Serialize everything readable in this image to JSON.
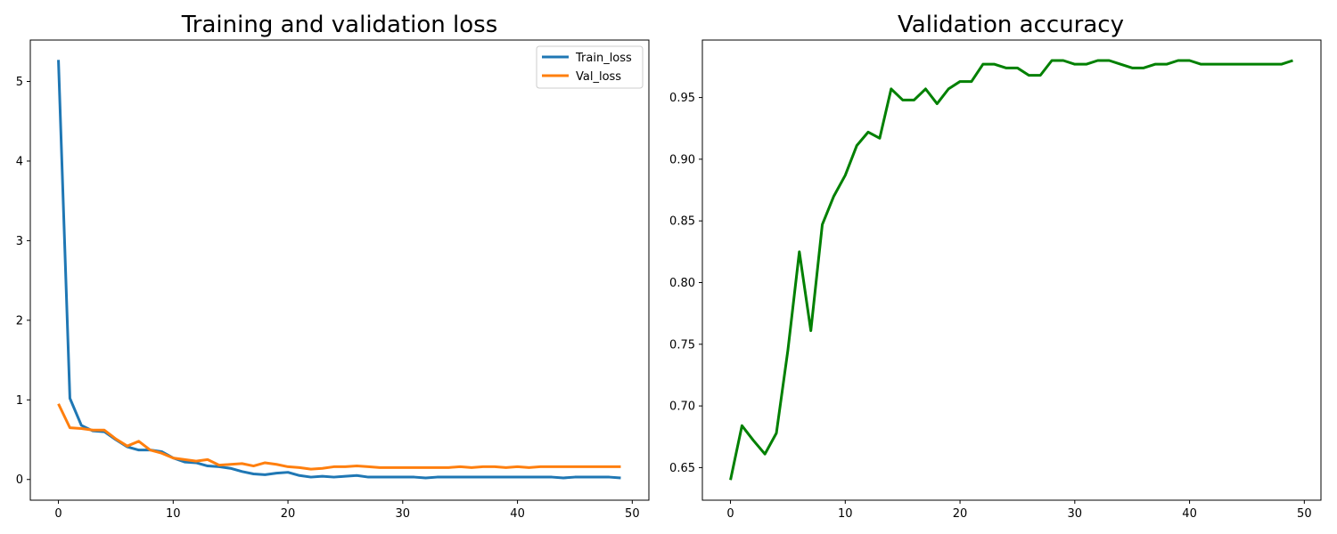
{
  "chart_data": [
    {
      "type": "line",
      "title": "Training and validation loss",
      "xlabel": "",
      "ylabel": "",
      "xlim": [
        -2.45,
        51.45
      ],
      "ylim": [
        -0.26,
        5.52
      ],
      "xticks": [
        0,
        10,
        20,
        30,
        40,
        50
      ],
      "yticks": [
        0,
        1,
        2,
        3,
        4,
        5
      ],
      "grid": false,
      "legend_position": "upper right",
      "x": [
        0,
        1,
        2,
        3,
        4,
        5,
        6,
        7,
        8,
        9,
        10,
        11,
        12,
        13,
        14,
        15,
        16,
        17,
        18,
        19,
        20,
        21,
        22,
        23,
        24,
        25,
        26,
        27,
        28,
        29,
        30,
        31,
        32,
        33,
        34,
        35,
        36,
        37,
        38,
        39,
        40,
        41,
        42,
        43,
        44,
        45,
        46,
        47,
        48,
        49
      ],
      "series": [
        {
          "name": "Train_loss",
          "color": "#1f77b4",
          "values": [
            5.27,
            1.02,
            0.68,
            0.61,
            0.6,
            0.5,
            0.41,
            0.37,
            0.37,
            0.35,
            0.27,
            0.22,
            0.21,
            0.17,
            0.16,
            0.14,
            0.1,
            0.07,
            0.06,
            0.08,
            0.09,
            0.05,
            0.03,
            0.04,
            0.03,
            0.04,
            0.05,
            0.03,
            0.03,
            0.03,
            0.03,
            0.03,
            0.02,
            0.03,
            0.03,
            0.03,
            0.03,
            0.03,
            0.03,
            0.03,
            0.03,
            0.03,
            0.03,
            0.03,
            0.02,
            0.03,
            0.03,
            0.03,
            0.03,
            0.02
          ]
        },
        {
          "name": "Val_loss",
          "color": "#ff7f0e",
          "values": [
            0.95,
            0.65,
            0.64,
            0.62,
            0.62,
            0.51,
            0.42,
            0.48,
            0.37,
            0.33,
            0.27,
            0.25,
            0.23,
            0.25,
            0.18,
            0.19,
            0.2,
            0.17,
            0.21,
            0.19,
            0.16,
            0.15,
            0.13,
            0.14,
            0.16,
            0.16,
            0.17,
            0.16,
            0.15,
            0.15,
            0.15,
            0.15,
            0.15,
            0.15,
            0.15,
            0.16,
            0.15,
            0.16,
            0.16,
            0.15,
            0.16,
            0.15,
            0.16,
            0.16,
            0.16,
            0.16,
            0.16,
            0.16,
            0.16,
            0.16
          ]
        }
      ]
    },
    {
      "type": "line",
      "title": "Validation accuracy",
      "xlabel": "",
      "ylabel": "",
      "xlim": [
        -2.45,
        51.45
      ],
      "ylim": [
        0.6236,
        0.9966
      ],
      "xticks": [
        0,
        10,
        20,
        30,
        40,
        50
      ],
      "yticks": [
        0.65,
        0.7,
        0.75,
        0.8,
        0.85,
        0.9,
        0.95
      ],
      "ytick_labels": [
        "0.65",
        "0.70",
        "0.75",
        "0.80",
        "0.85",
        "0.90",
        "0.95"
      ],
      "grid": false,
      "x": [
        0,
        1,
        2,
        3,
        4,
        5,
        6,
        7,
        8,
        9,
        10,
        11,
        12,
        13,
        14,
        15,
        16,
        17,
        18,
        19,
        20,
        21,
        22,
        23,
        24,
        25,
        26,
        27,
        28,
        29,
        30,
        31,
        32,
        33,
        34,
        35,
        36,
        37,
        38,
        39,
        40,
        41,
        42,
        43,
        44,
        45,
        46,
        47,
        48,
        49
      ],
      "series": [
        {
          "color": "#008000",
          "values": [
            0.64,
            0.684,
            0.672,
            0.661,
            0.678,
            0.745,
            0.825,
            0.761,
            0.847,
            0.87,
            0.887,
            0.911,
            0.922,
            0.917,
            0.957,
            0.948,
            0.948,
            0.957,
            0.945,
            0.957,
            0.963,
            0.963,
            0.977,
            0.977,
            0.974,
            0.974,
            0.968,
            0.968,
            0.98,
            0.98,
            0.977,
            0.977,
            0.98,
            0.98,
            0.977,
            0.974,
            0.974,
            0.977,
            0.977,
            0.98,
            0.98,
            0.977,
            0.977,
            0.977,
            0.977,
            0.977,
            0.977,
            0.977,
            0.977,
            0.98
          ]
        }
      ]
    }
  ]
}
